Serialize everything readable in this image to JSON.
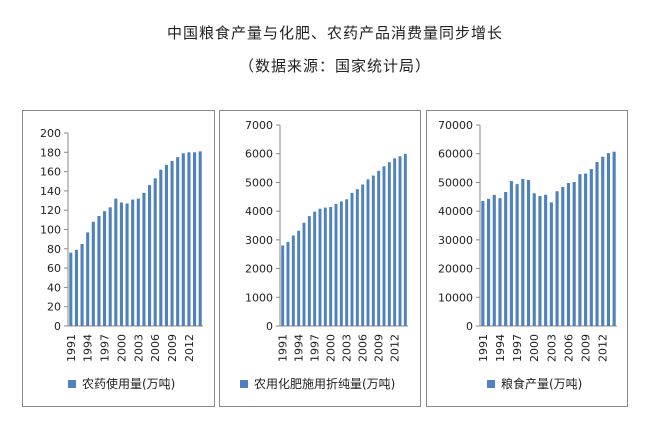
{
  "page": {
    "title": "中国粮食产量与化肥、农药产品消费量同步增长",
    "subtitle": "（数据来源：国家统计局）"
  },
  "colors": {
    "bar": "#4f81bd",
    "axis": "#8a8a8a"
  },
  "chart_data": [
    {
      "type": "bar",
      "legend": "农药使用量(万吨)",
      "legend_position": "bottom",
      "x_tick_labels": [
        "1991",
        "1994",
        "1997",
        "2000",
        "2003",
        "2006",
        "2009",
        "2012"
      ],
      "y_ticks": [
        0,
        20,
        40,
        60,
        80,
        100,
        120,
        140,
        160,
        180,
        200
      ],
      "ylim": [
        0,
        200
      ],
      "categories": [
        "1991",
        "1992",
        "1993",
        "1994",
        "1995",
        "1996",
        "1997",
        "1998",
        "1999",
        "2000",
        "2001",
        "2002",
        "2003",
        "2004",
        "2005",
        "2006",
        "2007",
        "2008",
        "2009",
        "2010",
        "2011",
        "2012",
        "2013",
        "2014"
      ],
      "values": [
        76,
        79,
        85,
        97,
        108,
        114,
        119,
        123,
        132,
        128,
        127,
        131,
        132,
        138,
        146,
        153,
        162,
        167,
        171,
        175,
        179,
        180,
        180,
        181
      ]
    },
    {
      "type": "bar",
      "legend": "农用化肥施用折纯量(万吨)",
      "legend_position": "bottom",
      "x_tick_labels": [
        "1991",
        "1994",
        "1997",
        "2000",
        "2003",
        "2006",
        "2009",
        "2012"
      ],
      "y_ticks": [
        0,
        1000,
        2000,
        3000,
        4000,
        5000,
        6000,
        7000
      ],
      "ylim": [
        0,
        7000
      ],
      "categories": [
        "1991",
        "1992",
        "1993",
        "1994",
        "1995",
        "1996",
        "1997",
        "1998",
        "1999",
        "2000",
        "2001",
        "2002",
        "2003",
        "2004",
        "2005",
        "2006",
        "2007",
        "2008",
        "2009",
        "2010",
        "2011",
        "2012",
        "2013",
        "2014"
      ],
      "values": [
        2805,
        2930,
        3152,
        3318,
        3594,
        3828,
        3981,
        4084,
        4124,
        4146,
        4254,
        4339,
        4412,
        4637,
        4766,
        4928,
        5108,
        5239,
        5404,
        5562,
        5704,
        5839,
        5912,
        5996
      ]
    },
    {
      "type": "bar",
      "legend": "粮食产量(万吨)",
      "legend_position": "bottom",
      "x_tick_labels": [
        "1991",
        "1994",
        "1997",
        "2000",
        "2003",
        "2006",
        "2009",
        "2012"
      ],
      "y_ticks": [
        0,
        10000,
        20000,
        30000,
        40000,
        50000,
        60000,
        70000
      ],
      "ylim": [
        0,
        70000
      ],
      "categories": [
        "1991",
        "1992",
        "1993",
        "1994",
        "1995",
        "1996",
        "1997",
        "1998",
        "1999",
        "2000",
        "2001",
        "2002",
        "2003",
        "2004",
        "2005",
        "2006",
        "2007",
        "2008",
        "2009",
        "2010",
        "2011",
        "2012",
        "2013",
        "2014"
      ],
      "values": [
        43529,
        44266,
        45649,
        44510,
        46662,
        50454,
        49417,
        51230,
        50839,
        46218,
        45264,
        45706,
        43070,
        46947,
        48402,
        49804,
        50160,
        52871,
        53082,
        54648,
        57121,
        58958,
        60194,
        60703
      ]
    }
  ]
}
